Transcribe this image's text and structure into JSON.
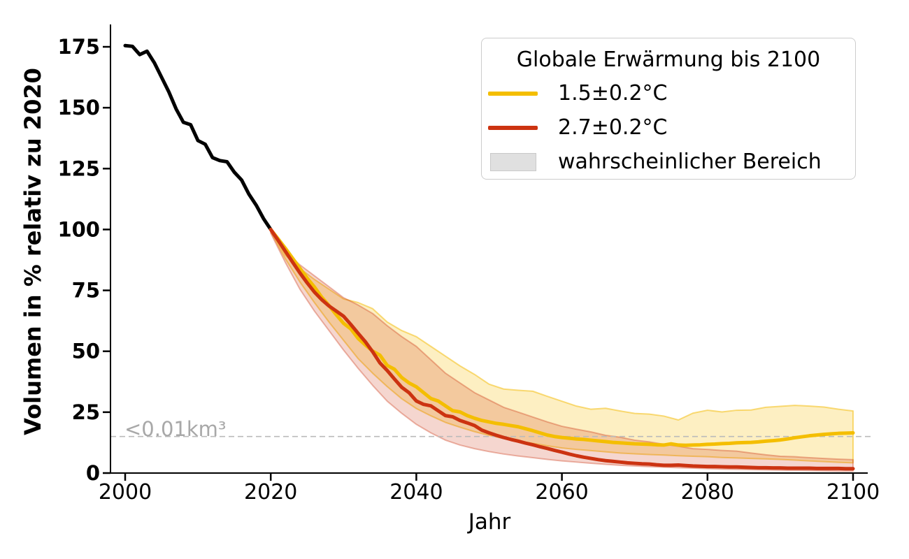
{
  "figure": {
    "xlabel": "Jahr",
    "ylabel": "Volumen in % relativ zu 2020",
    "annotation": "<0.01km³",
    "legend": {
      "title": "Globale Erwärmung bis 2100",
      "entries": [
        {
          "label": "1.5±0.2°C",
          "swatch": "line",
          "color": "#F4BE00"
        },
        {
          "label": "2.7±0.2°C",
          "swatch": "line",
          "color": "#CC3311"
        },
        {
          "label": "wahrscheinlicher Bereich",
          "swatch": "patch",
          "color": "#E0E0E0",
          "edge": "#C9C9C9"
        }
      ]
    },
    "colors": {
      "historical_line": "#000000",
      "warm15_line": "#F4BE00",
      "warm27_line": "#CC3311",
      "threshold_line": "#BBBBBB",
      "annotation_text": "#A8A8A8",
      "background": "#FFFFFF"
    }
  },
  "chart_data": {
    "type": "line",
    "title": "",
    "xlabel": "Jahr",
    "ylabel": "Volumen in % relativ zu 2020",
    "xlim": [
      1998,
      2102
    ],
    "ylim": [
      0,
      184
    ],
    "x_ticks": [
      2000,
      2020,
      2040,
      2060,
      2080,
      2100
    ],
    "y_ticks": [
      0,
      25,
      50,
      75,
      100,
      125,
      150,
      175
    ],
    "grid": false,
    "legend_position": "upper right",
    "threshold": {
      "value": 15,
      "label": "<0.01km³"
    },
    "series": [
      {
        "id": "historical",
        "name": "historical-2000-2020",
        "color": "#000000",
        "x": [
          2000,
          2001,
          2002,
          2003,
          2004,
          2005,
          2006,
          2007,
          2008,
          2009,
          2010,
          2011,
          2012,
          2013,
          2014,
          2015,
          2016,
          2017,
          2018,
          2019,
          2020
        ],
        "y": [
          175.5,
          175.2,
          171.8,
          173.2,
          168.5,
          162.5,
          156.5,
          149.5,
          144.0,
          143.0,
          136.5,
          135.0,
          129.5,
          128.3,
          127.8,
          123.5,
          120.3,
          114.5,
          110.0,
          104.5,
          100.0
        ]
      },
      {
        "id": "scenario-1p5",
        "name": "1.5±0.2°C",
        "color": "#F4BE00",
        "x": [
          2020,
          2021,
          2022,
          2023,
          2024,
          2025,
          2026,
          2027,
          2028,
          2029,
          2030,
          2031,
          2032,
          2033,
          2034,
          2035,
          2036,
          2037,
          2038,
          2039,
          2040,
          2041,
          2042,
          2043,
          2044,
          2045,
          2046,
          2047,
          2048,
          2049,
          2050,
          2051,
          2052,
          2053,
          2054,
          2055,
          2056,
          2057,
          2058,
          2059,
          2060,
          2061,
          2062,
          2063,
          2064,
          2065,
          2066,
          2067,
          2068,
          2069,
          2070,
          2071,
          2072,
          2073,
          2074,
          2075,
          2076,
          2077,
          2078,
          2079,
          2080,
          2081,
          2082,
          2083,
          2084,
          2085,
          2086,
          2087,
          2088,
          2089,
          2090,
          2091,
          2092,
          2093,
          2094,
          2095,
          2096,
          2097,
          2098,
          2099,
          2100
        ],
        "y": [
          100.0,
          96.2,
          92.3,
          88.2,
          84.1,
          80.0,
          76.4,
          72.2,
          68.8,
          65.0,
          61.5,
          59.2,
          55.3,
          52.6,
          50.1,
          48.4,
          44.2,
          42.6,
          39.2,
          37.0,
          35.4,
          33.0,
          30.6,
          29.6,
          27.6,
          25.6,
          25.1,
          23.6,
          22.5,
          21.6,
          21.0,
          20.4,
          20.0,
          19.5,
          19.0,
          18.2,
          17.4,
          16.5,
          15.6,
          15.0,
          14.6,
          14.3,
          14.0,
          13.8,
          13.5,
          13.2,
          12.9,
          12.6,
          12.4,
          12.2,
          12.0,
          11.9,
          11.8,
          11.6,
          11.5,
          12.0,
          11.5,
          11.4,
          11.5,
          11.6,
          11.8,
          11.9,
          12.1,
          12.2,
          12.4,
          12.5,
          12.6,
          12.8,
          13.1,
          13.3,
          13.6,
          14.0,
          14.5,
          14.9,
          15.3,
          15.6,
          15.9,
          16.1,
          16.3,
          16.4,
          16.5
        ]
      },
      {
        "id": "scenario-2p7",
        "name": "2.7±0.2°C",
        "color": "#CC3311",
        "x": [
          2020,
          2021,
          2022,
          2023,
          2024,
          2025,
          2026,
          2027,
          2028,
          2029,
          2030,
          2031,
          2032,
          2033,
          2034,
          2035,
          2036,
          2037,
          2038,
          2039,
          2040,
          2041,
          2042,
          2043,
          2044,
          2045,
          2046,
          2047,
          2048,
          2049,
          2050,
          2051,
          2052,
          2053,
          2054,
          2055,
          2056,
          2057,
          2058,
          2059,
          2060,
          2061,
          2062,
          2063,
          2064,
          2065,
          2066,
          2067,
          2068,
          2069,
          2070,
          2071,
          2072,
          2073,
          2074,
          2075,
          2076,
          2077,
          2078,
          2079,
          2080,
          2081,
          2082,
          2083,
          2084,
          2085,
          2086,
          2087,
          2088,
          2089,
          2090,
          2091,
          2092,
          2093,
          2094,
          2095,
          2096,
          2097,
          2098,
          2099,
          2100
        ],
        "y": [
          100.0,
          95.6,
          91.1,
          86.6,
          82.2,
          78.1,
          74.3,
          71.2,
          68.6,
          66.5,
          64.4,
          61.0,
          57.4,
          53.9,
          49.8,
          45.2,
          42.1,
          38.6,
          35.2,
          33.0,
          29.6,
          28.2,
          27.6,
          25.6,
          23.6,
          23.1,
          21.6,
          20.6,
          19.5,
          17.6,
          16.5,
          15.5,
          14.6,
          13.8,
          13.1,
          12.3,
          11.6,
          10.8,
          10.1,
          9.3,
          8.6,
          7.8,
          7.1,
          6.5,
          6.0,
          5.5,
          5.1,
          4.8,
          4.5,
          4.2,
          4.0,
          3.8,
          3.7,
          3.4,
          3.2,
          3.2,
          3.3,
          3.1,
          2.9,
          2.8,
          2.7,
          2.7,
          2.6,
          2.5,
          2.5,
          2.4,
          2.3,
          2.2,
          2.2,
          2.1,
          2.1,
          2.0,
          2.0,
          2.0,
          2.0,
          1.9,
          1.9,
          1.9,
          1.9,
          1.8,
          1.8
        ]
      }
    ],
    "bands": [
      {
        "id": "band-1p5",
        "name": "wahrscheinlicher-bereich-1.5C",
        "fill": "rgba(246,190,0,0.24)",
        "edge": "rgba(243,185,0,0.5)",
        "x": [
          2020,
          2022,
          2024,
          2026,
          2028,
          2030,
          2032,
          2034,
          2036,
          2038,
          2040,
          2042,
          2044,
          2046,
          2048,
          2050,
          2052,
          2054,
          2056,
          2058,
          2060,
          2062,
          2064,
          2066,
          2068,
          2070,
          2072,
          2074,
          2076,
          2078,
          2080,
          2082,
          2084,
          2086,
          2088,
          2090,
          2092,
          2094,
          2096,
          2098,
          2100
        ],
        "upper": [
          100,
          89.5,
          84,
          79.5,
          75.5,
          71.5,
          70,
          67.5,
          62,
          58.5,
          56,
          52,
          48,
          44,
          40.5,
          36.5,
          34.5,
          34,
          33.6,
          31.5,
          29.5,
          27.5,
          26.2,
          26.6,
          25.5,
          24.5,
          24.2,
          23.4,
          21.8,
          24.6,
          25.8,
          25.1,
          25.8,
          25.9,
          27,
          27.4,
          27.8,
          27.5,
          27.1,
          26.2,
          25.5
        ],
        "lower": [
          99,
          88,
          78.5,
          70,
          62,
          54.5,
          47,
          41,
          35.5,
          30.5,
          26.5,
          23.5,
          20.8,
          18.8,
          17,
          15.5,
          14.2,
          13.2,
          12.2,
          11.2,
          10.3,
          9.7,
          9.2,
          8.7,
          8.2,
          7.9,
          7.6,
          7.4,
          7.1,
          6.9,
          6.7,
          6.4,
          6.2,
          6,
          5.8,
          5.6,
          5.3,
          5,
          4.7,
          4.4,
          4.2
        ]
      },
      {
        "id": "band-2p7",
        "name": "wahrscheinlicher-bereich-2.7C",
        "fill": "rgba(204,51,17,0.20)",
        "edge": "rgba(204,51,17,0.35)",
        "x": [
          2020,
          2022,
          2024,
          2026,
          2028,
          2030,
          2032,
          2034,
          2036,
          2038,
          2040,
          2042,
          2044,
          2046,
          2048,
          2050,
          2052,
          2054,
          2056,
          2058,
          2060,
          2062,
          2064,
          2066,
          2068,
          2070,
          2072,
          2074,
          2076,
          2078,
          2080,
          2082,
          2084,
          2086,
          2088,
          2090,
          2092,
          2094,
          2096,
          2098,
          2100
        ],
        "upper": [
          100,
          91,
          85.5,
          81,
          76.5,
          72,
          69,
          65.5,
          60.5,
          56,
          52,
          46.5,
          41,
          37,
          33,
          30,
          27,
          25,
          23,
          21,
          19.2,
          18,
          16.9,
          15.5,
          14.7,
          13.5,
          12.8,
          11.8,
          11,
          10,
          9.7,
          9.3,
          9,
          8.2,
          7.5,
          6.9,
          6.7,
          6.3,
          6,
          5.7,
          5.5
        ],
        "lower": [
          98.5,
          86.5,
          75.5,
          66.5,
          58.5,
          50.5,
          43,
          36,
          29.5,
          24.5,
          20,
          16.5,
          13.5,
          11.5,
          10,
          8.8,
          7.8,
          7,
          6.3,
          5.6,
          5,
          4.5,
          4,
          3.6,
          3.2,
          2.9,
          2.6,
          2.4,
          2.2,
          2,
          1.8,
          1.6,
          1.5,
          1.4,
          1.3,
          1.2,
          1.1,
          1,
          0.9,
          0.8,
          0.8
        ]
      }
    ]
  }
}
